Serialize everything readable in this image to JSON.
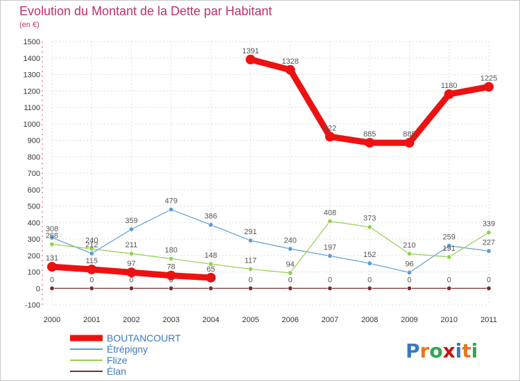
{
  "chart_data": {
    "type": "line",
    "title": "Evolution du Montant de la Dette par Habitant",
    "subtitle": "(en €)",
    "x": [
      "2000",
      "2001",
      "2002",
      "2003",
      "2004",
      "2005",
      "2006",
      "2007",
      "2008",
      "2009",
      "2010",
      "2011"
    ],
    "ylim": [
      -100,
      1500
    ],
    "yticks": [
      -100,
      0,
      100,
      200,
      300,
      400,
      500,
      600,
      700,
      800,
      900,
      1000,
      1100,
      1200,
      1300,
      1400,
      1500
    ],
    "series": [
      {
        "name": "BOUTANCOURT",
        "color": "#ee1111",
        "values": [
          131,
          115,
          97,
          78,
          65,
          1391,
          1328,
          922,
          885,
          885,
          1180,
          1225
        ],
        "gap_after_index": 4
      },
      {
        "name": "Étrépigny",
        "color": "#5b9bd5",
        "values": [
          308,
          212,
          359,
          479,
          386,
          291,
          240,
          197,
          152,
          96,
          259,
          227
        ]
      },
      {
        "name": "Flize",
        "color": "#92d050",
        "values": [
          268,
          240,
          211,
          180,
          148,
          117,
          94,
          408,
          373,
          210,
          191,
          339
        ]
      },
      {
        "name": "Élan",
        "color": "#7b2c2c",
        "values": [
          0,
          0,
          0,
          0,
          0,
          0,
          0,
          0,
          0,
          0,
          0,
          0
        ]
      }
    ],
    "logo_text": "Proxiti"
  }
}
